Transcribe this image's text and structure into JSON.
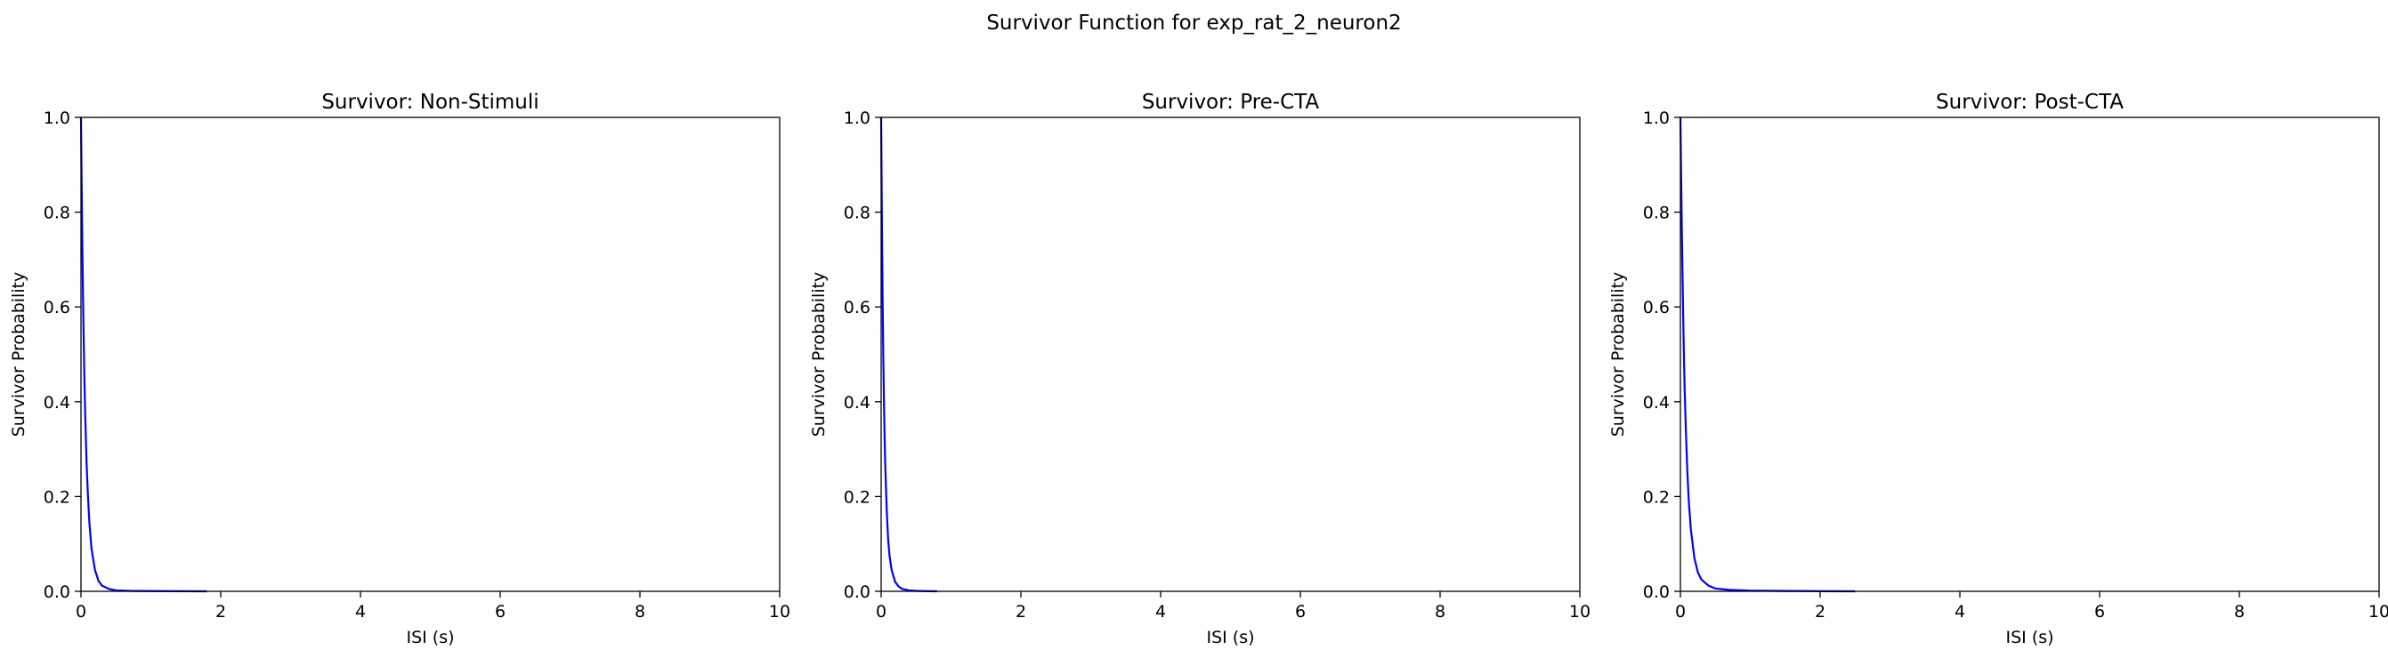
{
  "figure": {
    "suptitle": "Survivor Function for exp_rat_2_neuron2"
  },
  "chart_data": [
    {
      "type": "line",
      "title": "Survivor: Non-Stimuli",
      "xlabel": "ISI (s)",
      "ylabel": "Survivor Probability",
      "xlim": [
        0,
        10
      ],
      "ylim": [
        0,
        1
      ],
      "xticks": [
        0,
        2,
        4,
        6,
        8,
        10
      ],
      "yticks": [
        0.0,
        0.2,
        0.4,
        0.6,
        0.8,
        1.0
      ],
      "xtick_labels": [
        "0",
        "2",
        "4",
        "6",
        "8",
        "10"
      ],
      "ytick_labels": [
        "0.0",
        "0.2",
        "0.4",
        "0.6",
        "0.8",
        "1.0"
      ],
      "grid": false,
      "color": "#0000ff",
      "x": [
        0,
        0.01,
        0.02,
        0.03,
        0.04,
        0.05,
        0.06,
        0.08,
        0.1,
        0.12,
        0.15,
        0.2,
        0.25,
        0.3,
        0.4,
        0.5,
        0.7,
        1.0,
        1.4,
        1.8
      ],
      "y": [
        1.0,
        0.85,
        0.72,
        0.61,
        0.52,
        0.44,
        0.375,
        0.27,
        0.2,
        0.145,
        0.09,
        0.045,
        0.022,
        0.012,
        0.005,
        0.002,
        0.001,
        0.0005,
        0.0002,
        0.0
      ]
    },
    {
      "type": "line",
      "title": "Survivor: Pre-CTA",
      "xlabel": "ISI (s)",
      "ylabel": "Survivor Probability",
      "xlim": [
        0,
        10
      ],
      "ylim": [
        0,
        1
      ],
      "xticks": [
        0,
        2,
        4,
        6,
        8,
        10
      ],
      "yticks": [
        0.0,
        0.2,
        0.4,
        0.6,
        0.8,
        1.0
      ],
      "xtick_labels": [
        "0",
        "2",
        "4",
        "6",
        "8",
        "10"
      ],
      "ytick_labels": [
        "0.0",
        "0.2",
        "0.4",
        "0.6",
        "0.8",
        "1.0"
      ],
      "grid": false,
      "color": "#0000ff",
      "x": [
        0,
        0.01,
        0.02,
        0.03,
        0.04,
        0.05,
        0.06,
        0.08,
        0.1,
        0.12,
        0.15,
        0.2,
        0.25,
        0.3,
        0.4,
        0.5,
        0.6,
        0.8
      ],
      "y": [
        1.0,
        0.8,
        0.63,
        0.5,
        0.4,
        0.32,
        0.26,
        0.17,
        0.11,
        0.075,
        0.045,
        0.02,
        0.01,
        0.005,
        0.002,
        0.001,
        0.0005,
        0.0
      ]
    },
    {
      "type": "line",
      "title": "Survivor: Post-CTA",
      "xlabel": "ISI (s)",
      "ylabel": "Survivor Probability",
      "xlim": [
        0,
        10
      ],
      "ylim": [
        0,
        1
      ],
      "xticks": [
        0,
        2,
        4,
        6,
        8,
        10
      ],
      "yticks": [
        0.0,
        0.2,
        0.4,
        0.6,
        0.8,
        1.0
      ],
      "xtick_labels": [
        "0",
        "2",
        "4",
        "6",
        "8",
        "10"
      ],
      "ytick_labels": [
        "0.0",
        "0.2",
        "0.4",
        "0.6",
        "0.8",
        "1.0"
      ],
      "grid": false,
      "color": "#0000ff",
      "x": [
        0,
        0.01,
        0.02,
        0.03,
        0.04,
        0.05,
        0.06,
        0.08,
        0.1,
        0.12,
        0.15,
        0.2,
        0.25,
        0.3,
        0.4,
        0.5,
        0.7,
        1.0,
        1.5,
        2.0,
        2.5
      ],
      "y": [
        1.0,
        0.88,
        0.77,
        0.67,
        0.58,
        0.5,
        0.43,
        0.33,
        0.25,
        0.19,
        0.13,
        0.07,
        0.04,
        0.025,
        0.012,
        0.006,
        0.003,
        0.0015,
        0.0007,
        0.0003,
        0.0
      ]
    }
  ]
}
